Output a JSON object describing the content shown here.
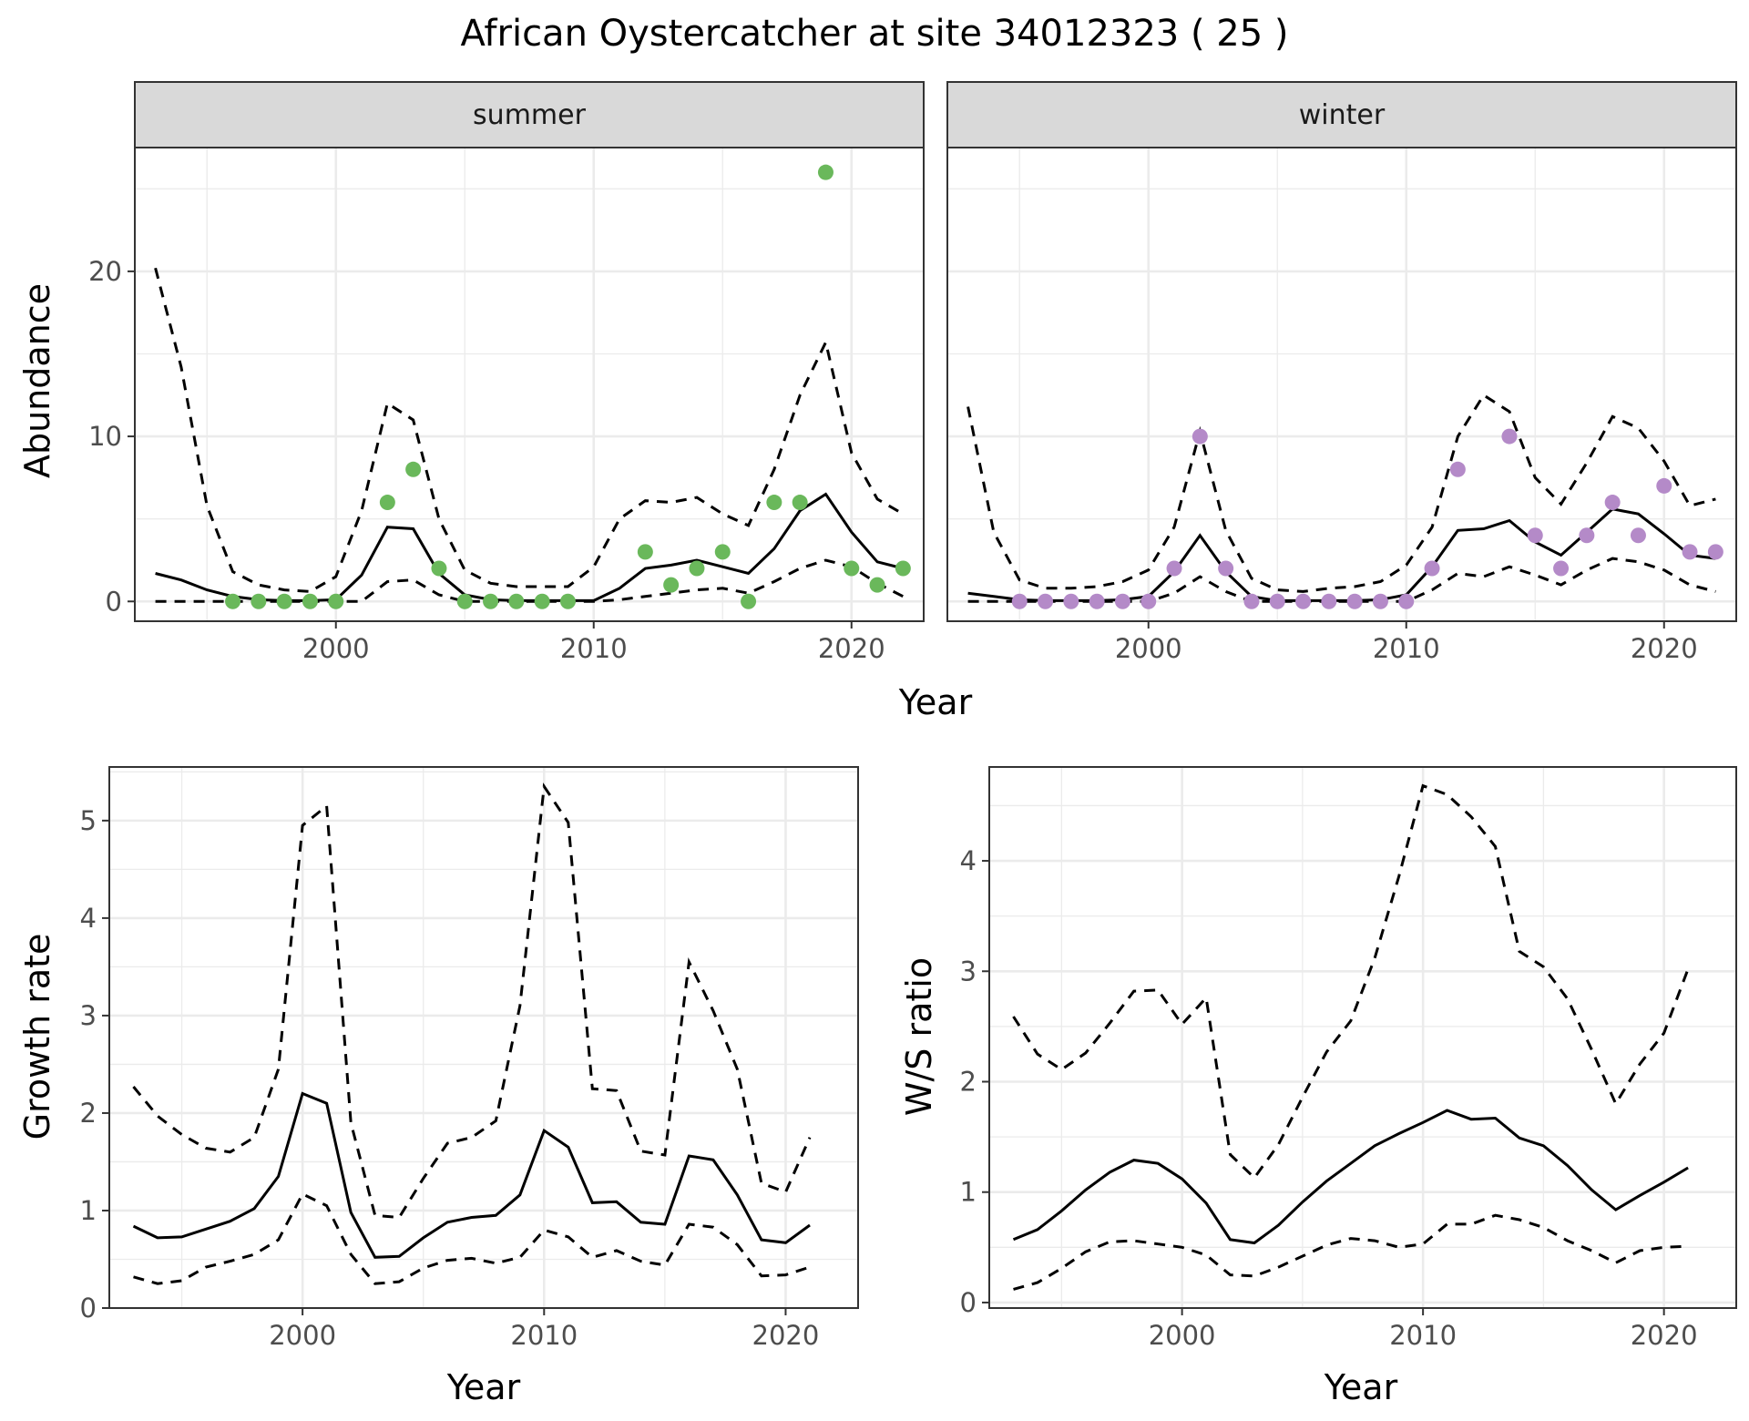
{
  "figure": {
    "title": "African Oystercatcher at site 34012323 ( 25 )"
  },
  "colors": {
    "summer_points": "#6ab85b",
    "winter_points": "#b48ac8",
    "lines": "#000000",
    "strip_fill": "#d9d9d9",
    "grid": "#ebebeb"
  },
  "chart_data": [
    {
      "type": "line",
      "panel": "abundance",
      "ylabel": "Abundance",
      "xlabel": "Year",
      "xlim": [
        1992.2,
        2022.8
      ],
      "ylim": [
        -1.2,
        27.5
      ],
      "xticks": [
        2000,
        2010,
        2020
      ],
      "yticks": [
        0,
        10,
        20
      ],
      "grid": true,
      "facets": [
        {
          "strip_label": "summer",
          "points": {
            "x": [
              1996,
              1997,
              1998,
              1999,
              2000,
              2002,
              2003,
              2004,
              2005,
              2006,
              2007,
              2008,
              2009,
              2012,
              2013,
              2014,
              2015,
              2016,
              2017,
              2018,
              2019,
              2020,
              2021,
              2022
            ],
            "y": [
              0,
              0,
              0,
              0,
              0,
              6,
              8,
              2,
              0,
              0,
              0,
              0,
              0,
              3,
              1,
              2,
              3,
              0,
              6,
              6,
              26,
              2,
              1,
              2
            ]
          },
          "fit": {
            "x": [
              1993,
              1994,
              1995,
              1996,
              1997,
              1998,
              1999,
              2000,
              2001,
              2002,
              2003,
              2004,
              2005,
              2006,
              2007,
              2008,
              2009,
              2010,
              2011,
              2012,
              2013,
              2014,
              2015,
              2016,
              2017,
              2018,
              2019,
              2020,
              2021,
              2022
            ],
            "mean": [
              1.7,
              1.3,
              0.7,
              0.3,
              0.1,
              0.05,
              0.05,
              0.1,
              1.6,
              4.5,
              4.4,
              1.7,
              0.4,
              0.1,
              0.05,
              0.05,
              0.05,
              0.05,
              0.8,
              2.0,
              2.2,
              2.5,
              2.1,
              1.7,
              3.2,
              5.5,
              6.5,
              4.2,
              2.4,
              2.0
            ],
            "lower": [
              0,
              0,
              0,
              0,
              0,
              0,
              0,
              0,
              0,
              1.2,
              1.3,
              0.4,
              0,
              0,
              0,
              0,
              0,
              0,
              0.1,
              0.3,
              0.5,
              0.7,
              0.8,
              0.5,
              1.2,
              2.0,
              2.5,
              2.1,
              1.1,
              0.3
            ],
            "upper": [
              20.2,
              14.2,
              5.8,
              1.8,
              1.0,
              0.7,
              0.6,
              1.5,
              5.5,
              12.0,
              11.0,
              5.0,
              1.9,
              1.1,
              0.9,
              0.9,
              0.9,
              2.1,
              5.0,
              6.1,
              6.0,
              6.3,
              5.3,
              4.6,
              8.0,
              12.5,
              15.7,
              9.0,
              6.2,
              5.3
            ]
          }
        },
        {
          "strip_label": "winter",
          "points": {
            "x": [
              1995,
              1996,
              1997,
              1998,
              1999,
              2000,
              2001,
              2002,
              2003,
              2004,
              2005,
              2006,
              2007,
              2008,
              2009,
              2010,
              2011,
              2012,
              2014,
              2015,
              2016,
              2017,
              2018,
              2019,
              2020,
              2021,
              2022
            ],
            "y": [
              0,
              0,
              0,
              0,
              0,
              0,
              2,
              10,
              2,
              0,
              0,
              0,
              0,
              0,
              0,
              0,
              2,
              8,
              10,
              4,
              2,
              4,
              6,
              4,
              7,
              3,
              3
            ]
          },
          "fit": {
            "x": [
              1993,
              1994,
              1995,
              1996,
              1997,
              1998,
              1999,
              2000,
              2001,
              2002,
              2003,
              2004,
              2005,
              2006,
              2007,
              2008,
              2009,
              2010,
              2011,
              2012,
              2013,
              2014,
              2015,
              2016,
              2017,
              2018,
              2019,
              2020,
              2021,
              2022
            ],
            "mean": [
              0.5,
              0.3,
              0.1,
              0.05,
              0.05,
              0.05,
              0.1,
              0.3,
              1.8,
              4.0,
              1.8,
              0.3,
              0.05,
              0.05,
              0.05,
              0.05,
              0.1,
              0.4,
              2.1,
              4.3,
              4.4,
              4.9,
              3.6,
              2.8,
              4.2,
              5.6,
              5.3,
              4.1,
              2.8,
              2.6
            ],
            "lower": [
              0,
              0,
              0,
              0,
              0,
              0,
              0,
              0,
              0.5,
              1.5,
              0.6,
              0,
              0,
              0,
              0,
              0,
              0,
              0,
              0.7,
              1.7,
              1.5,
              2.1,
              1.6,
              1.0,
              1.9,
              2.6,
              2.4,
              1.9,
              1.0,
              0.6
            ],
            "upper": [
              11.8,
              4.2,
              1.3,
              0.8,
              0.8,
              0.9,
              1.2,
              1.9,
              4.5,
              10.3,
              4.3,
              1.4,
              0.7,
              0.6,
              0.8,
              0.9,
              1.2,
              2.2,
              4.5,
              10.0,
              12.5,
              11.5,
              7.5,
              5.9,
              8.4,
              11.2,
              10.5,
              8.5,
              5.8,
              6.2
            ]
          }
        }
      ]
    },
    {
      "type": "line",
      "panel": "growth",
      "ylabel": "Growth rate",
      "xlabel": "Year",
      "xlim": [
        1992,
        2023
      ],
      "ylim": [
        0,
        5.55
      ],
      "xticks": [
        2000,
        2010,
        2020
      ],
      "yticks": [
        0,
        1,
        2,
        3,
        4,
        5
      ],
      "grid": true,
      "x": [
        1993,
        1994,
        1995,
        1996,
        1997,
        1998,
        1999,
        2000,
        2001,
        2002,
        2003,
        2004,
        2005,
        2006,
        2007,
        2008,
        2009,
        2010,
        2011,
        2012,
        2013,
        2014,
        2015,
        2016,
        2017,
        2018,
        2019,
        2020,
        2021
      ],
      "mean": [
        0.84,
        0.72,
        0.73,
        0.81,
        0.89,
        1.02,
        1.35,
        2.2,
        2.1,
        0.98,
        0.52,
        0.53,
        0.72,
        0.88,
        0.93,
        0.95,
        1.16,
        1.82,
        1.65,
        1.08,
        1.09,
        0.88,
        0.86,
        1.56,
        1.52,
        1.16,
        0.7,
        0.67,
        0.85
      ],
      "lower": [
        0.32,
        0.25,
        0.28,
        0.42,
        0.48,
        0.55,
        0.7,
        1.17,
        1.05,
        0.55,
        0.25,
        0.27,
        0.41,
        0.49,
        0.51,
        0.46,
        0.52,
        0.8,
        0.73,
        0.52,
        0.59,
        0.48,
        0.44,
        0.86,
        0.83,
        0.65,
        0.33,
        0.34,
        0.42
      ],
      "upper": [
        2.27,
        1.97,
        1.78,
        1.64,
        1.6,
        1.75,
        2.45,
        4.95,
        5.15,
        1.9,
        0.95,
        0.93,
        1.33,
        1.69,
        1.75,
        1.92,
        3.1,
        5.35,
        4.98,
        2.25,
        2.23,
        1.61,
        1.57,
        3.55,
        3.05,
        2.45,
        1.28,
        1.19,
        1.75
      ]
    },
    {
      "type": "line",
      "panel": "ws_ratio",
      "ylabel": "W/S ratio",
      "xlabel": "Year",
      "xlim": [
        1992,
        2023
      ],
      "ylim": [
        -0.05,
        4.85
      ],
      "xticks": [
        2000,
        2010,
        2020
      ],
      "yticks": [
        0,
        1,
        2,
        3,
        4
      ],
      "grid": true,
      "x": [
        1993,
        1994,
        1995,
        1996,
        1997,
        1998,
        1999,
        2000,
        2001,
        2002,
        2003,
        2004,
        2005,
        2006,
        2007,
        2008,
        2009,
        2010,
        2011,
        2012,
        2013,
        2014,
        2015,
        2016,
        2017,
        2018,
        2019,
        2020,
        2021
      ],
      "mean": [
        0.57,
        0.66,
        0.83,
        1.02,
        1.18,
        1.29,
        1.26,
        1.12,
        0.9,
        0.57,
        0.54,
        0.7,
        0.91,
        1.1,
        1.26,
        1.42,
        1.53,
        1.63,
        1.74,
        1.66,
        1.67,
        1.49,
        1.42,
        1.24,
        1.02,
        0.84,
        0.97,
        1.09,
        1.22
      ],
      "lower": [
        0.12,
        0.18,
        0.31,
        0.46,
        0.55,
        0.56,
        0.53,
        0.5,
        0.43,
        0.25,
        0.24,
        0.32,
        0.42,
        0.52,
        0.58,
        0.56,
        0.5,
        0.53,
        0.71,
        0.71,
        0.79,
        0.75,
        0.68,
        0.56,
        0.47,
        0.36,
        0.47,
        0.5,
        0.51
      ],
      "upper": [
        2.59,
        2.25,
        2.11,
        2.26,
        2.53,
        2.82,
        2.83,
        2.52,
        2.76,
        1.34,
        1.13,
        1.43,
        1.86,
        2.27,
        2.55,
        3.12,
        3.86,
        4.68,
        4.6,
        4.4,
        4.13,
        3.18,
        3.04,
        2.75,
        2.29,
        1.8,
        2.16,
        2.44,
        3.02
      ]
    }
  ]
}
